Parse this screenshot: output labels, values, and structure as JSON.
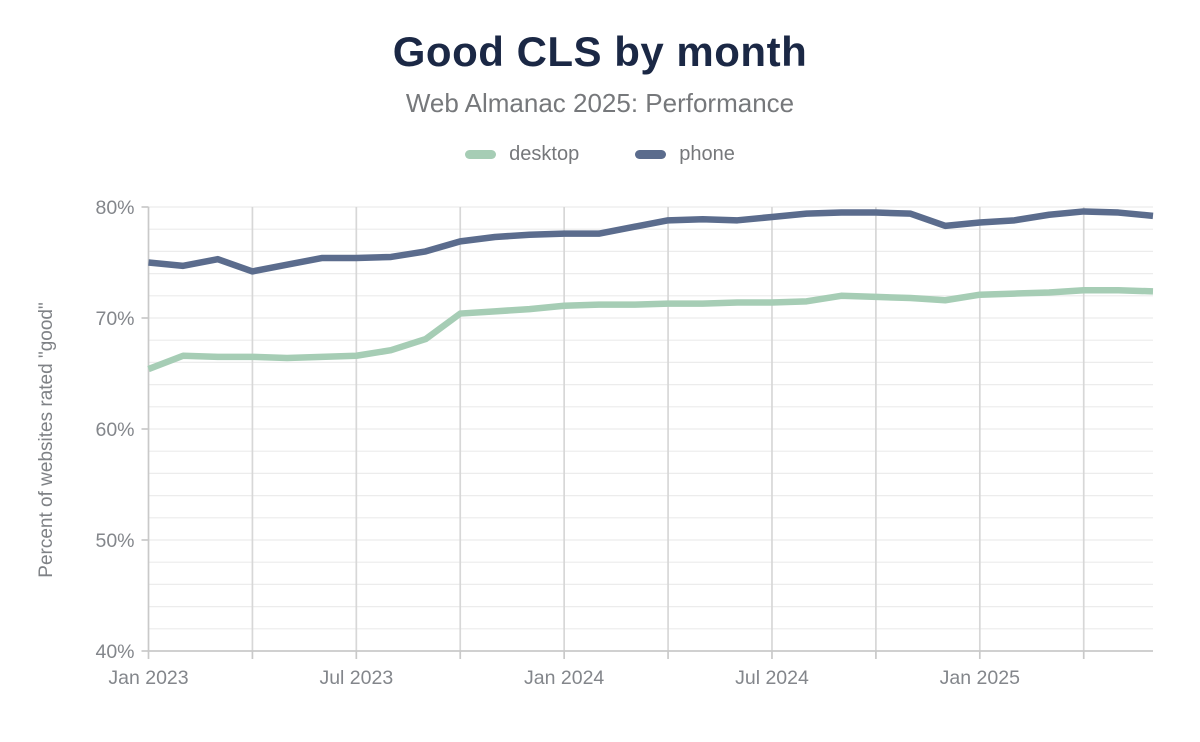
{
  "header": {
    "title": "Good CLS by month",
    "subtitle": "Web Almanac 2025: Performance"
  },
  "legend": {
    "items": [
      {
        "label": "desktop",
        "color": "#a6cdb5"
      },
      {
        "label": "phone",
        "color": "#5b6c8d"
      }
    ]
  },
  "colors": {
    "title_text": "#1b2845",
    "subtitle_text": "#76787b",
    "tick_text": "#83868b",
    "grid_minor": "#ececec",
    "grid_vertical": "#d7d7d7",
    "axis": "#c9c9c9",
    "desktop_line": "#a6cdb5",
    "phone_line": "#5b6c8d"
  },
  "chart_data": {
    "type": "line",
    "title": "Good CLS by month",
    "subtitle": "Web Almanac 2025: Performance",
    "xlabel": "",
    "ylabel": "Percent of websites rated \"good\"",
    "ylim": [
      40,
      80
    ],
    "y_tick_labels": [
      "40%",
      "50%",
      "60%",
      "70%",
      "80%"
    ],
    "y_major_step": 10,
    "y_minor_grid_step": 2,
    "x_tick_labels": [
      "Jan 2023",
      "Jul 2023",
      "Jan 2024",
      "Jul 2024",
      "Jan 2025"
    ],
    "x_tick_month_indices": [
      0,
      6,
      12,
      18,
      24
    ],
    "vertical_grid_every_months": 3,
    "grid": true,
    "legend_position": "top",
    "months": [
      "Jan 2023",
      "Feb 2023",
      "Mar 2023",
      "Apr 2023",
      "May 2023",
      "Jun 2023",
      "Jul 2023",
      "Aug 2023",
      "Sep 2023",
      "Oct 2023",
      "Nov 2023",
      "Dec 2023",
      "Jan 2024",
      "Feb 2024",
      "Mar 2024",
      "Apr 2024",
      "May 2024",
      "Jun 2024",
      "Jul 2024",
      "Aug 2024",
      "Sep 2024",
      "Oct 2024",
      "Nov 2024",
      "Dec 2024",
      "Jan 2025",
      "Feb 2025",
      "Mar 2025",
      "Apr 2025",
      "May 2025",
      "Jun 2025"
    ],
    "series": [
      {
        "name": "desktop",
        "color": "#a6cdb5",
        "values": [
          65.4,
          66.6,
          66.5,
          66.5,
          66.4,
          66.5,
          66.6,
          67.1,
          68.1,
          70.4,
          70.6,
          70.8,
          71.1,
          71.2,
          71.2,
          71.3,
          71.3,
          71.4,
          71.4,
          71.5,
          72.0,
          71.9,
          71.8,
          71.6,
          72.1,
          72.2,
          72.3,
          72.5,
          72.5,
          72.4
        ]
      },
      {
        "name": "phone",
        "color": "#5b6c8d",
        "values": [
          75.0,
          74.7,
          75.3,
          74.2,
          74.8,
          75.4,
          75.4,
          75.5,
          76.0,
          76.9,
          77.3,
          77.5,
          77.6,
          77.6,
          78.2,
          78.8,
          78.9,
          78.8,
          79.1,
          79.4,
          79.5,
          79.5,
          79.4,
          78.3,
          78.6,
          78.8,
          79.3,
          79.6,
          79.5,
          79.2
        ]
      }
    ]
  }
}
